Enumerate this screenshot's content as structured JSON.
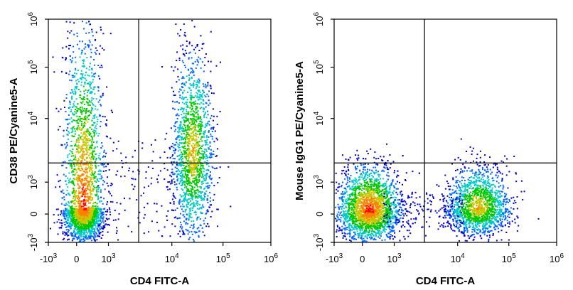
{
  "chart_data": [
    {
      "type": "scatter",
      "subtype": "flow-cytometry-density-plot",
      "xlabel": "CD4 FITC-A",
      "ylabel": "CD38 PE/Cyanine5-A",
      "xscale": "biexponential",
      "yscale": "biexponential",
      "xlim": [
        -1000,
        1000000
      ],
      "ylim": [
        -1000,
        1000000
      ],
      "x_ticks": [
        "-10^3",
        "0",
        "10^3",
        "10^4",
        "10^5",
        "10^6"
      ],
      "y_ticks": [
        "-10^3",
        "0",
        "10^3",
        "10^4",
        "10^5",
        "10^6"
      ],
      "quadrant_gate": {
        "x": 3000,
        "y": 2000
      },
      "populations": [
        {
          "x_center": 200,
          "y_center": 200,
          "y_range": [
            -800,
            100000
          ],
          "density": "high"
        },
        {
          "x_center": 25000,
          "y_center": 3000,
          "y_range": [
            -500,
            80000
          ],
          "density": "medium"
        }
      ],
      "color_scale": [
        "#0000c8",
        "#0066ff",
        "#00c8c8",
        "#00c800",
        "#c8c800",
        "#ff8000",
        "#ff0000"
      ]
    },
    {
      "type": "scatter",
      "subtype": "flow-cytometry-density-plot",
      "xlabel": "CD4 FITC-A",
      "ylabel": "Mouse IgG1 PE/Cyanine5-A",
      "xscale": "biexponential",
      "yscale": "biexponential",
      "xlim": [
        -1000,
        1000000
      ],
      "ylim": [
        -1000,
        1000000
      ],
      "x_ticks": [
        "-10^3",
        "0",
        "10^3",
        "10^4",
        "10^5",
        "10^6"
      ],
      "y_ticks": [
        "-10^3",
        "0",
        "10^3",
        "10^4",
        "10^5",
        "10^6"
      ],
      "quadrant_gate": {
        "x": 3000,
        "y": 2000
      },
      "populations": [
        {
          "x_center": 200,
          "y_center": 150,
          "y_range": [
            -800,
            1500
          ],
          "density": "high"
        },
        {
          "x_center": 25000,
          "y_center": 200,
          "y_range": [
            -600,
            1500
          ],
          "density": "medium"
        }
      ],
      "color_scale": [
        "#0000c8",
        "#0066ff",
        "#00c8c8",
        "#00c800",
        "#c8c800",
        "#ff8000",
        "#ff0000"
      ]
    }
  ]
}
